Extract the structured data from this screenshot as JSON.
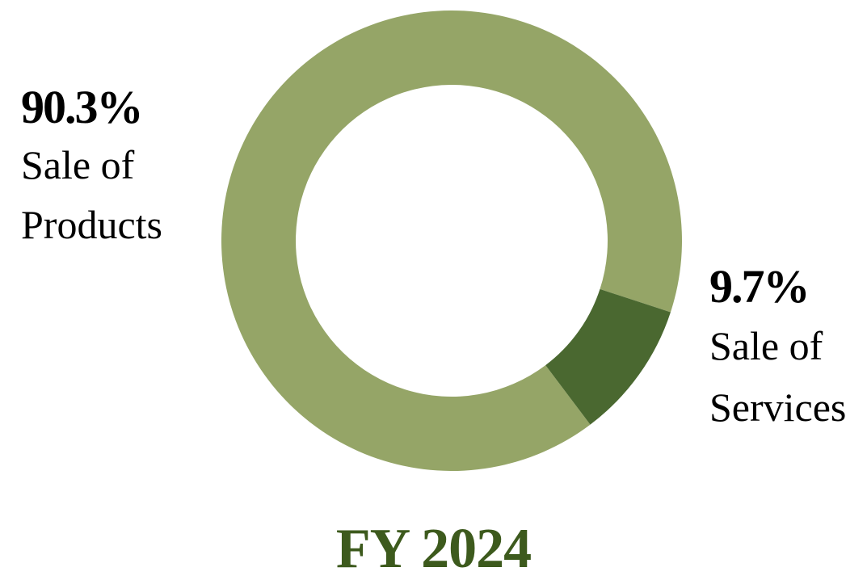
{
  "chart_data": {
    "type": "pie",
    "style": "donut",
    "title": "FY 2024",
    "slices": [
      {
        "label_line1": "Sale of",
        "label_line2": "Products",
        "value": 90.3,
        "value_text": "90.3%",
        "color": "#95a567"
      },
      {
        "label_line1": "Sale of",
        "label_line2": "Services",
        "value": 9.7,
        "value_text": "9.7%",
        "color": "#4a6830"
      }
    ],
    "title_color": "#3d5a1d"
  }
}
